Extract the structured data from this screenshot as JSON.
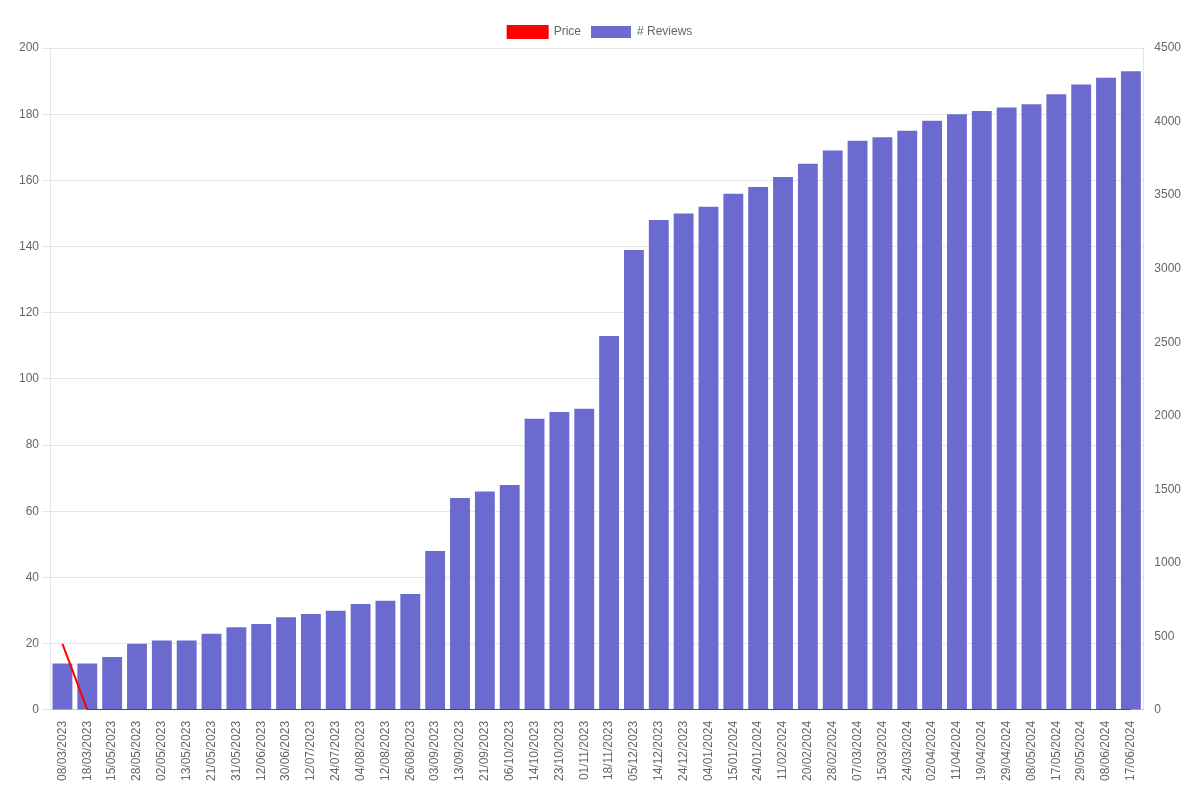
{
  "chart_data": {
    "type": "bar",
    "categories": [
      "08/03/2023",
      "18/03/2023",
      "15/05/2023",
      "28/05/2023",
      "02/05/2023",
      "13/05/2023",
      "21/05/2023",
      "31/05/2023",
      "12/06/2023",
      "30/06/2023",
      "12/07/2023",
      "24/07/2023",
      "04/08/2023",
      "12/08/2023",
      "26/08/2023",
      "03/09/2023",
      "13/09/2023",
      "21/09/2023",
      "06/10/2023",
      "14/10/2023",
      "23/10/2023",
      "01/11/2023",
      "18/11/2023",
      "05/12/2023",
      "14/12/2023",
      "24/12/2023",
      "04/01/2024",
      "15/01/2024",
      "24/01/2024",
      "11/02/2024",
      "20/02/2024",
      "28/02/2024",
      "07/03/2024",
      "15/03/2024",
      "24/03/2024",
      "02/04/2024",
      "11/04/2024",
      "19/04/2024",
      "29/04/2024",
      "08/05/2024",
      "17/05/2024",
      "29/05/2024",
      "08/06/2024",
      "17/06/2024"
    ],
    "series": [
      {
        "name": "Price",
        "type": "line",
        "color": "#ff0000",
        "values": [
          19.99,
          0,
          0,
          0,
          0,
          0,
          0,
          0,
          0,
          0,
          0,
          0,
          0,
          0,
          0,
          0,
          0,
          0,
          0,
          0,
          0,
          0,
          0,
          0,
          0,
          0,
          0,
          0,
          0,
          0,
          0,
          0,
          0,
          0,
          0,
          0,
          0,
          0,
          0,
          0,
          0,
          0,
          0,
          0
        ]
      },
      {
        "name": "# Reviews",
        "type": "bar",
        "color": "#6B6BCF",
        "values": [
          14,
          14,
          16,
          20,
          21,
          21,
          23,
          25,
          26,
          28,
          29,
          30,
          32,
          33,
          35,
          48,
          64,
          66,
          68,
          88,
          90,
          91,
          113,
          139,
          148,
          150,
          152,
          156,
          158,
          161,
          165,
          169,
          172,
          173,
          175,
          178,
          180,
          181,
          182,
          183,
          186,
          189,
          191,
          193
        ]
      }
    ],
    "ylim": [
      0,
      200
    ],
    "yticks": [
      0,
      20,
      40,
      60,
      80,
      100,
      120,
      140,
      160,
      180,
      200
    ],
    "y2lim": [
      0,
      4500
    ],
    "y2ticks": [
      0,
      500,
      1000,
      1500,
      2000,
      2500,
      3000,
      3500,
      4000,
      4500
    ],
    "grid": true,
    "legend": "top"
  }
}
